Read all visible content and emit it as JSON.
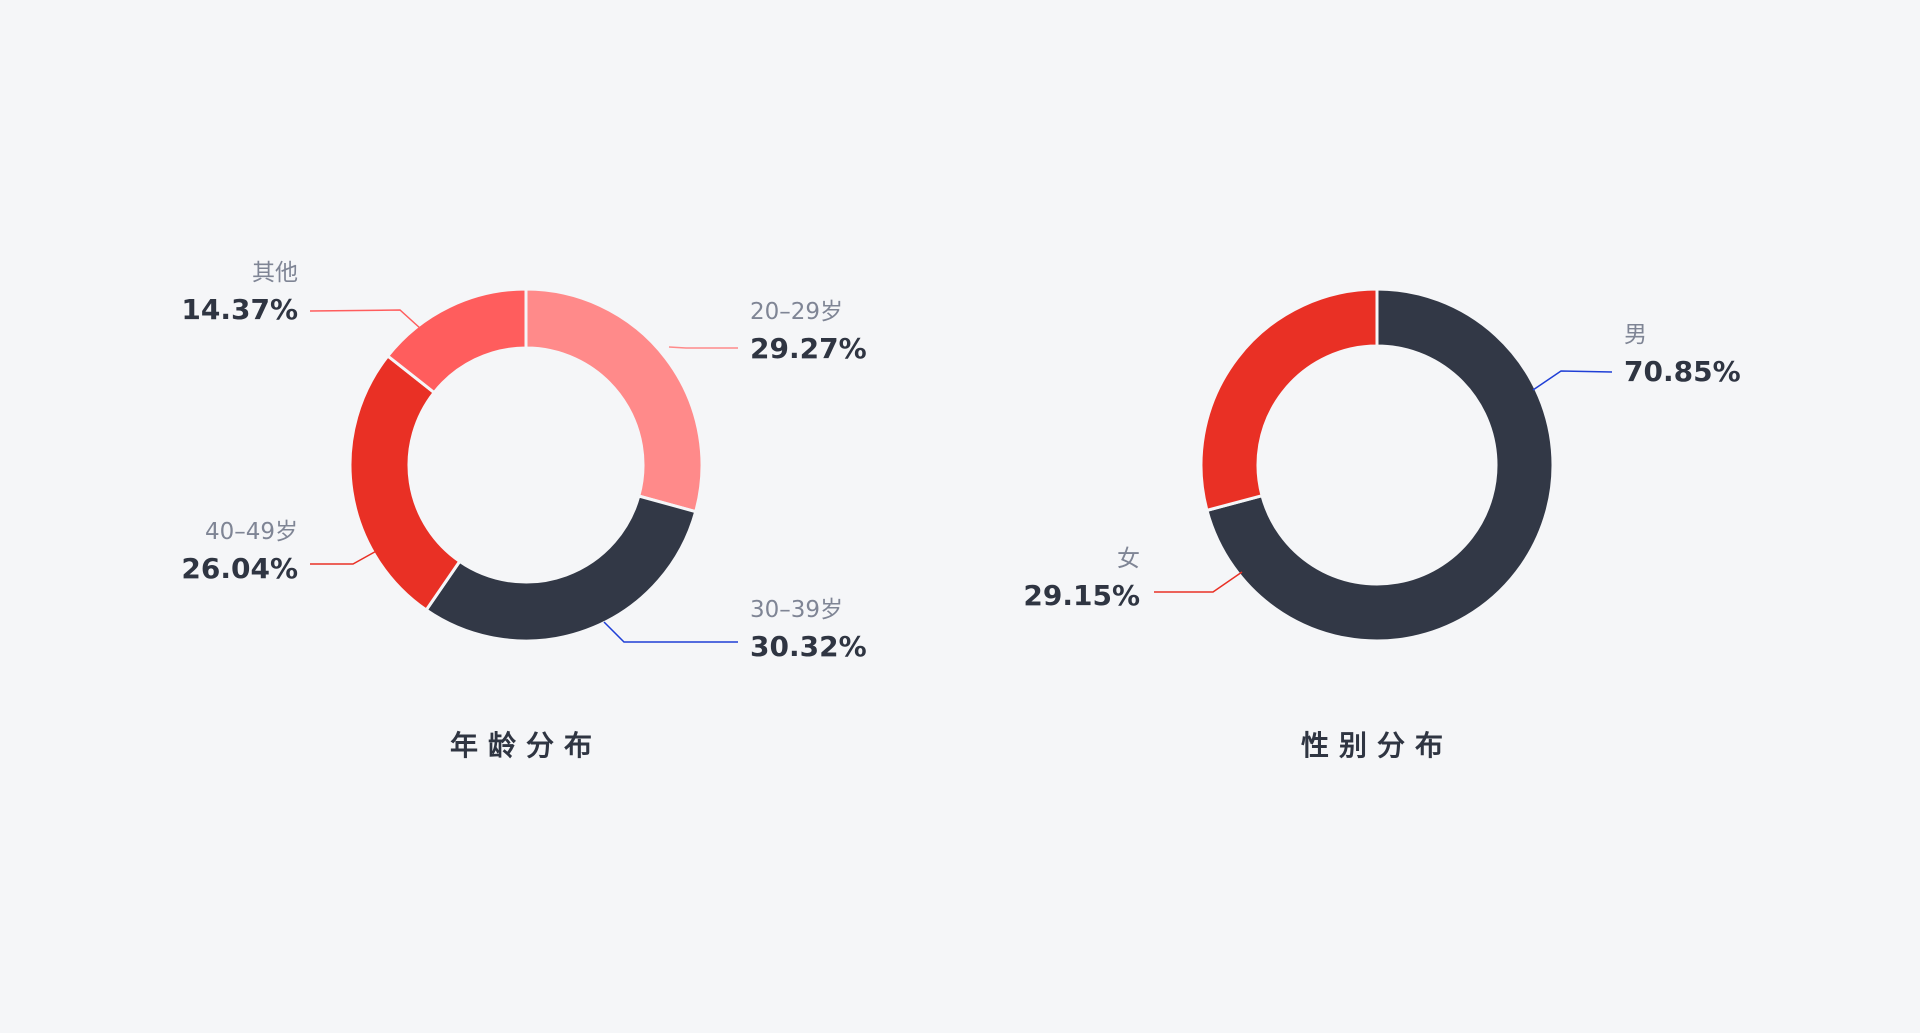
{
  "chart_data": [
    {
      "type": "pie",
      "title": "年龄分布",
      "slices": [
        {
          "label": "20–29岁",
          "value_label": "29.27%",
          "value": 29.27,
          "color": "#ff8a8a",
          "leader_color": "#ff8a8a"
        },
        {
          "label": "30–39岁",
          "value_label": "30.32%",
          "value": 30.32,
          "color": "#323846",
          "leader_color": "#1f3fd6"
        },
        {
          "label": "40–49岁",
          "value_label": "26.04%",
          "value": 26.04,
          "color": "#e93025",
          "leader_color": "#e93025"
        },
        {
          "label": "其他",
          "value_label": "14.37%",
          "value": 14.37,
          "color": "#ff5d5d",
          "leader_color": "#ff5d5d"
        }
      ]
    },
    {
      "type": "pie",
      "title": "性别分布",
      "slices": [
        {
          "label": "男",
          "value_label": "70.85%",
          "value": 70.85,
          "color": "#323846",
          "leader_color": "#1f3fd6"
        },
        {
          "label": "女",
          "value_label": "29.15%",
          "value": 29.15,
          "color": "#e93025",
          "leader_color": "#e93025"
        }
      ]
    }
  ]
}
